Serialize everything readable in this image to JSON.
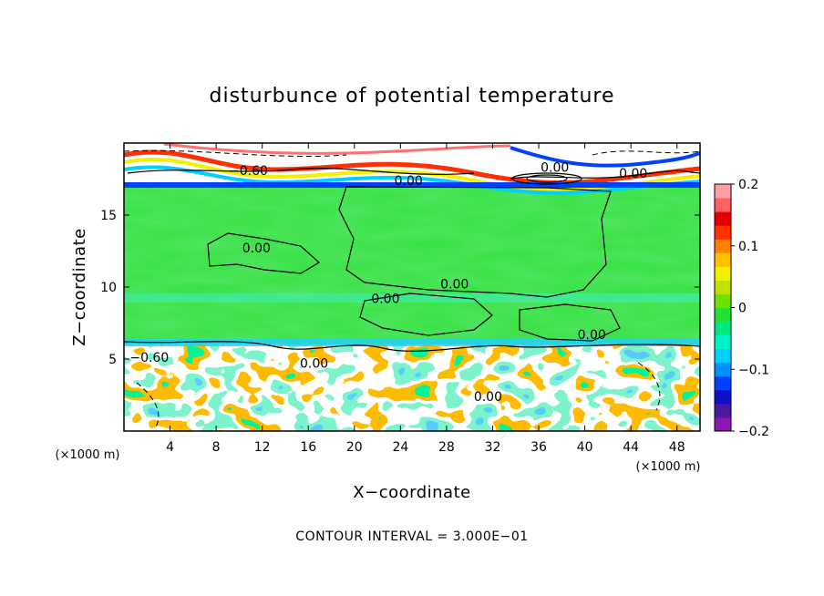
{
  "chart_data": {
    "type": "heatmap",
    "title": "disturbunce of potential temperature",
    "xlabel": "X−coordinate",
    "ylabel": "Z−coordinate",
    "x_unit": "(×1000 m)",
    "z_unit": "(×1000 m)",
    "xlim": [
      0,
      50
    ],
    "zlim": [
      0,
      20
    ],
    "x_ticks": [
      4,
      8,
      12,
      16,
      20,
      24,
      28,
      32,
      36,
      40,
      44,
      48
    ],
    "x_tick_labels": [
      "4",
      "8",
      "12",
      "16",
      "20",
      "24",
      "28",
      "32",
      "36",
      "40",
      "44",
      "48"
    ],
    "z_ticks": [
      5,
      10,
      15
    ],
    "z_tick_labels": [
      "5",
      "10",
      "15"
    ],
    "colorbar": {
      "range": [
        -0.2,
        0.2
      ],
      "ticks": [
        0.2,
        0.1,
        0,
        -0.1,
        -0.2
      ],
      "tick_labels": [
        "0.2",
        "0.1",
        "0",
        "−0.1",
        "−0.2"
      ],
      "colors": [
        "#8b1ab0",
        "#4a1aa0",
        "#1010c8",
        "#0040ff",
        "#0090ff",
        "#00d0ff",
        "#00f0c8",
        "#00e880",
        "#20e030",
        "#70e000",
        "#c0e000",
        "#f0f000",
        "#ffc000",
        "#ff8000",
        "#ff3000",
        "#e00000",
        "#ff6060",
        "#ffa0a0"
      ]
    },
    "contour_interval_text": "CONTOUR INTERVAL = 3.000E−01",
    "contour_labels": [
      {
        "text": "−0.60",
        "x": 10.8,
        "z": 17.8
      },
      {
        "text": "0.00",
        "x": 24.7,
        "z": 17.1
      },
      {
        "text": "0.00",
        "x": 37.4,
        "z": 18.0
      },
      {
        "text": "0.00",
        "x": 44.2,
        "z": 17.6
      },
      {
        "text": "0.00",
        "x": 11.5,
        "z": 12.4
      },
      {
        "text": "0.00",
        "x": 28.7,
        "z": 9.9
      },
      {
        "text": "0.00",
        "x": 22.7,
        "z": 8.9
      },
      {
        "text": "0.00",
        "x": 40.6,
        "z": 6.4
      },
      {
        "text": "−0.60",
        "x": 2.2,
        "z": 4.8
      },
      {
        "text": "0.00",
        "x": 16.5,
        "z": 4.4
      },
      {
        "text": "0.00",
        "x": 31.6,
        "z": 2.1
      }
    ],
    "regions": [
      {
        "name": "upper-stratified-layer",
        "z_range": [
          17,
          20
        ],
        "value": "alternating bands, −0.2 to 0.2"
      },
      {
        "name": "mid-level-uniform-layer",
        "z_range": [
          6,
          17
        ],
        "value": "≈ 0"
      },
      {
        "name": "lower-convective-layer",
        "z_range": [
          0,
          6
        ],
        "value": "turbulent, −0.2 to 0.2"
      }
    ],
    "grid": false
  }
}
